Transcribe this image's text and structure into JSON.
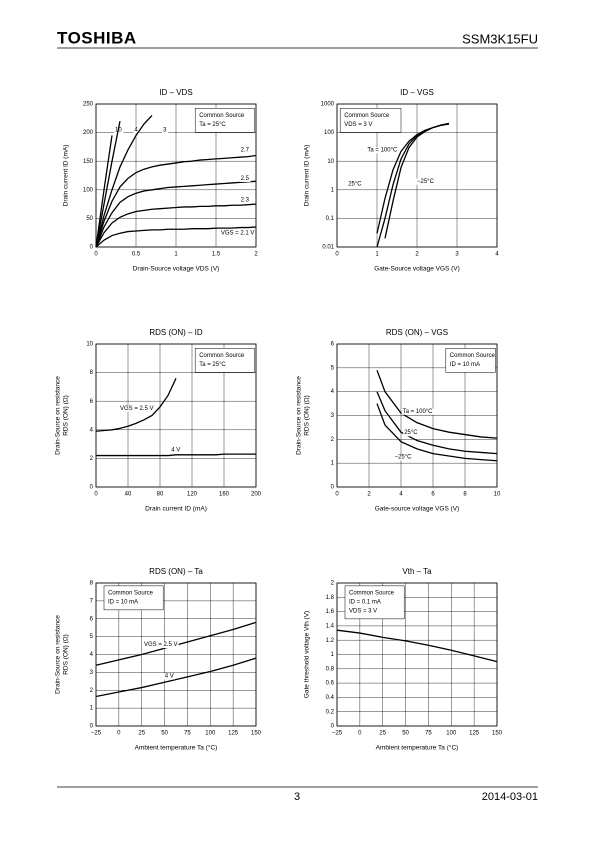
{
  "header": {
    "brand": "TOSHIBA",
    "part": "SSM3K15FU"
  },
  "footer": {
    "page": "3",
    "date": "2014-03-01"
  },
  "chart_data": [
    {
      "type": "line",
      "title": "ID – VDS",
      "xlabel": "Drain-Source voltage   VDS   (V)",
      "ylabel": [
        "Drain current   ID   (mA)"
      ],
      "annotations": [
        "Common Source",
        "Ta = 25°C"
      ],
      "x": [
        0,
        0.1,
        0.2,
        0.3,
        0.4,
        0.5,
        0.6,
        0.7,
        0.8,
        0.9,
        1.0,
        1.1,
        1.2,
        1.3,
        1.4,
        1.5,
        1.6,
        1.7,
        1.8,
        1.9,
        2.0
      ],
      "xlim": [
        0,
        2
      ],
      "xticks": [
        0,
        0.5,
        1,
        1.5,
        2
      ],
      "ylim": [
        0,
        250
      ],
      "yticks": [
        0,
        50,
        100,
        150,
        200,
        250
      ],
      "grid": true,
      "series": [
        {
          "name": "10",
          "color": "#000000",
          "values": [
            0,
            100,
            195,
            null,
            null,
            null,
            null,
            null,
            null,
            null,
            null,
            null,
            null,
            null,
            null,
            null,
            null,
            null,
            null,
            null,
            null
          ]
        },
        {
          "name": "4",
          "color": "#000000",
          "values": [
            0,
            75,
            150,
            220,
            null,
            null,
            null,
            null,
            null,
            null,
            null,
            null,
            null,
            null,
            null,
            null,
            null,
            null,
            null,
            null,
            null
          ]
        },
        {
          "name": "3",
          "color": "#000000",
          "values": [
            0,
            55,
            100,
            140,
            170,
            195,
            215,
            230,
            null,
            null,
            null,
            null,
            null,
            null,
            null,
            null,
            null,
            null,
            null,
            null,
            null
          ]
        },
        {
          "name": "2.7",
          "color": "#000000",
          "values": [
            0,
            45,
            80,
            105,
            120,
            130,
            136,
            140,
            143,
            145,
            147,
            149,
            150,
            152,
            153,
            154,
            155,
            156,
            157,
            158,
            160
          ]
        },
        {
          "name": "2.5",
          "color": "#000000",
          "values": [
            0,
            35,
            60,
            78,
            88,
            94,
            98,
            100,
            102,
            104,
            105,
            106,
            107,
            108,
            109,
            110,
            111,
            112,
            113,
            114,
            115
          ]
        },
        {
          "name": "2.3",
          "color": "#000000",
          "values": [
            0,
            25,
            42,
            52,
            58,
            62,
            64,
            66,
            67,
            68,
            69,
            70,
            70,
            71,
            71,
            72,
            72,
            73,
            73,
            74,
            75
          ]
        },
        {
          "name": "VGS = 2.1 V",
          "color": "#000000",
          "values": [
            0,
            12,
            20,
            24,
            27,
            28,
            29,
            30,
            30,
            31,
            31,
            31,
            32,
            32,
            32,
            33,
            33,
            33,
            34,
            34,
            35
          ]
        }
      ]
    },
    {
      "type": "line",
      "title": "ID – VGS",
      "xlabel": "Gate-Source voltage   VGS   (V)",
      "ylabel": [
        "Drain current   ID   (mA)"
      ],
      "annotations": [
        "Common Source",
        "VDS = 3 V"
      ],
      "x": [
        1.0,
        1.2,
        1.4,
        1.6,
        1.8,
        2.0,
        2.2,
        2.4,
        2.6,
        2.8
      ],
      "xlim": [
        0,
        4
      ],
      "xticks": [
        0,
        1,
        2,
        3,
        4
      ],
      "ylim": [
        0.01,
        1000
      ],
      "yticks": [
        0.01,
        0.1,
        1,
        10,
        100,
        1000
      ],
      "log_y": true,
      "grid": true,
      "series": [
        {
          "name": "Ta = 100°C",
          "color": "#000000",
          "values": [
            0.03,
            0.5,
            5,
            22,
            50,
            85,
            120,
            150,
            180,
            200
          ]
        },
        {
          "name": "25°C",
          "color": "#000000",
          "values": [
            0.01,
            0.1,
            1.5,
            12,
            40,
            80,
            115,
            150,
            180,
            205
          ]
        },
        {
          "name": "−25°C",
          "color": "#000000",
          "values": [
            null,
            0.02,
            0.4,
            6,
            30,
            70,
            110,
            150,
            185,
            210
          ]
        }
      ]
    },
    {
      "type": "line",
      "title": "RDS (ON) – ID",
      "xlabel": "Drain current   ID   (mA)",
      "ylabel": [
        "Drain-Source on resistance",
        "RDS (ON)   (Ω)"
      ],
      "annotations": [
        "Common Source",
        "Ta = 25°C"
      ],
      "x": [
        0,
        10,
        20,
        30,
        40,
        50,
        60,
        70,
        80,
        90,
        100,
        110,
        120,
        130,
        140,
        150,
        160,
        170,
        180,
        190,
        200
      ],
      "xlim": [
        0,
        200
      ],
      "xticks": [
        0,
        40,
        80,
        120,
        160,
        200
      ],
      "ylim": [
        0,
        10
      ],
      "yticks": [
        0,
        2,
        4,
        6,
        8,
        10
      ],
      "grid": true,
      "series": [
        {
          "name": "VGS = 2.5 V",
          "color": "#000000",
          "values": [
            3.9,
            3.95,
            4.0,
            4.1,
            4.25,
            4.45,
            4.7,
            5.0,
            5.6,
            6.4,
            7.6,
            null,
            null,
            null,
            null,
            null,
            null,
            null,
            null,
            null,
            null
          ]
        },
        {
          "name": "4 V",
          "color": "#000000",
          "values": [
            2.2,
            2.2,
            2.2,
            2.2,
            2.2,
            2.2,
            2.2,
            2.2,
            2.2,
            2.2,
            2.25,
            2.25,
            2.25,
            2.25,
            2.25,
            2.25,
            2.3,
            2.3,
            2.3,
            2.3,
            2.3
          ]
        }
      ]
    },
    {
      "type": "line",
      "title": "RDS (ON) – VGS",
      "xlabel": "Gate-source voltage   VGS   (V)",
      "ylabel": [
        "Drain-Source on resistance",
        "RDS (ON)   (Ω)"
      ],
      "annotations": [
        "Common Source",
        "ID = 10 mA"
      ],
      "x": [
        2.5,
        3,
        4,
        5,
        6,
        7,
        8,
        9,
        10
      ],
      "xlim": [
        0,
        10
      ],
      "xticks": [
        0,
        2,
        4,
        6,
        8,
        10
      ],
      "ylim": [
        0,
        6
      ],
      "yticks": [
        0,
        1,
        2,
        3,
        4,
        5,
        6
      ],
      "grid": true,
      "series": [
        {
          "name": "Ta = 100°C",
          "color": "#000000",
          "values": [
            4.9,
            4.0,
            3.1,
            2.7,
            2.45,
            2.3,
            2.2,
            2.1,
            2.05
          ]
        },
        {
          "name": "25°C",
          "color": "#000000",
          "values": [
            4.0,
            3.2,
            2.3,
            1.95,
            1.75,
            1.6,
            1.5,
            1.45,
            1.4
          ]
        },
        {
          "name": "−25°C",
          "color": "#000000",
          "values": [
            3.5,
            2.6,
            1.9,
            1.6,
            1.4,
            1.3,
            1.2,
            1.15,
            1.1
          ]
        }
      ]
    },
    {
      "type": "line",
      "title": "RDS (ON) – Ta",
      "xlabel": "Ambient temperature    Ta    (°C)",
      "ylabel": [
        "Drain-Source on resistance",
        "RDS (ON)   (Ω)"
      ],
      "annotations": [
        "Common Source",
        "ID = 10 mA"
      ],
      "x": [
        -25,
        0,
        25,
        50,
        75,
        100,
        125,
        150
      ],
      "xlim": [
        -25,
        150
      ],
      "xticks": [
        {
          "value": -25,
          "label": "−25"
        },
        0,
        25,
        50,
        75,
        100,
        125,
        150
      ],
      "ylim": [
        0,
        8
      ],
      "yticks": [
        0,
        1,
        2,
        3,
        4,
        5,
        6,
        7,
        8
      ],
      "grid": true,
      "series": [
        {
          "name": "VGS = 2.5 V",
          "color": "#000000",
          "values": [
            3.4,
            3.7,
            4.0,
            4.35,
            4.7,
            5.05,
            5.4,
            5.8
          ]
        },
        {
          "name": "4 V",
          "color": "#000000",
          "values": [
            1.65,
            1.9,
            2.15,
            2.45,
            2.75,
            3.05,
            3.4,
            3.8
          ]
        }
      ]
    },
    {
      "type": "line",
      "title": "Vth – Ta",
      "xlabel": "Ambient temperature    Ta    (°C)",
      "ylabel": [
        "Gate threshold voltage    Vth    (V)"
      ],
      "annotations": [
        "Common Source",
        "ID = 0.1 mA",
        "VDS = 3 V"
      ],
      "x": [
        -25,
        0,
        25,
        50,
        75,
        100,
        125,
        150
      ],
      "xlim": [
        -25,
        150
      ],
      "xticks": [
        {
          "value": -25,
          "label": "−25"
        },
        0,
        25,
        50,
        75,
        100,
        125,
        150
      ],
      "ylim": [
        0,
        2
      ],
      "yticks": [
        0,
        0.2,
        0.4,
        0.6,
        0.8,
        1,
        1.2,
        1.4,
        1.6,
        1.8,
        2
      ],
      "grid": true,
      "series": [
        {
          "color": "#000000",
          "values": [
            1.34,
            1.3,
            1.24,
            1.19,
            1.13,
            1.06,
            0.98,
            0.9
          ]
        }
      ]
    }
  ]
}
